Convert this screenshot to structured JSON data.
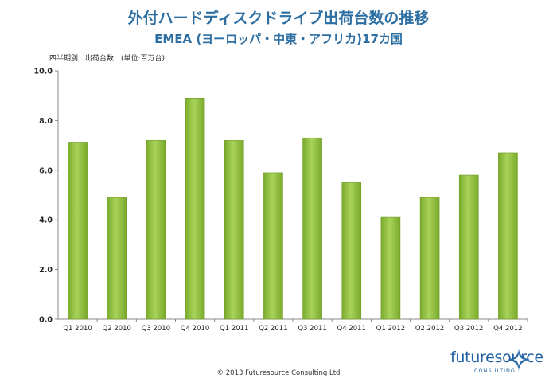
{
  "header": {
    "title": "外付ハードディスクドライブ出荷台数の推移",
    "subtitle": "EMEA (ヨーロッパ・中東・アフリカ)17カ国",
    "unit_label": "四半期別　出荷台数　(単位:百万台)"
  },
  "chart_data": {
    "type": "bar",
    "title": "外付ハードディスクドライブ出荷台数の推移",
    "subtitle": "EMEA (ヨーロッパ・中東・アフリカ)17カ国",
    "ylabel": "四半期別　出荷台数　(単位:百万台)",
    "xlabel": "",
    "categories": [
      "Q1 2010",
      "Q2 2010",
      "Q3 2010",
      "Q4 2010",
      "Q1 2011",
      "Q2 2011",
      "Q3 2011",
      "Q4 2011",
      "Q1 2012",
      "Q2 2012",
      "Q3 2012",
      "Q4 2012"
    ],
    "values": [
      7.1,
      4.9,
      7.2,
      8.9,
      7.2,
      5.9,
      7.3,
      5.5,
      4.1,
      4.9,
      5.8,
      6.7
    ],
    "ylim": [
      0,
      10
    ],
    "yticks": [
      "0.0",
      "2.0",
      "4.0",
      "6.0",
      "8.0",
      "10.0"
    ],
    "grid": false,
    "bar_color": "#8cbe3a"
  },
  "footer": {
    "copyright": "© 2013 Futuresource Consulting Ltd"
  },
  "logo": {
    "word": "futuresource",
    "sub": "CONSULTING",
    "color": "#1d5fa2"
  }
}
